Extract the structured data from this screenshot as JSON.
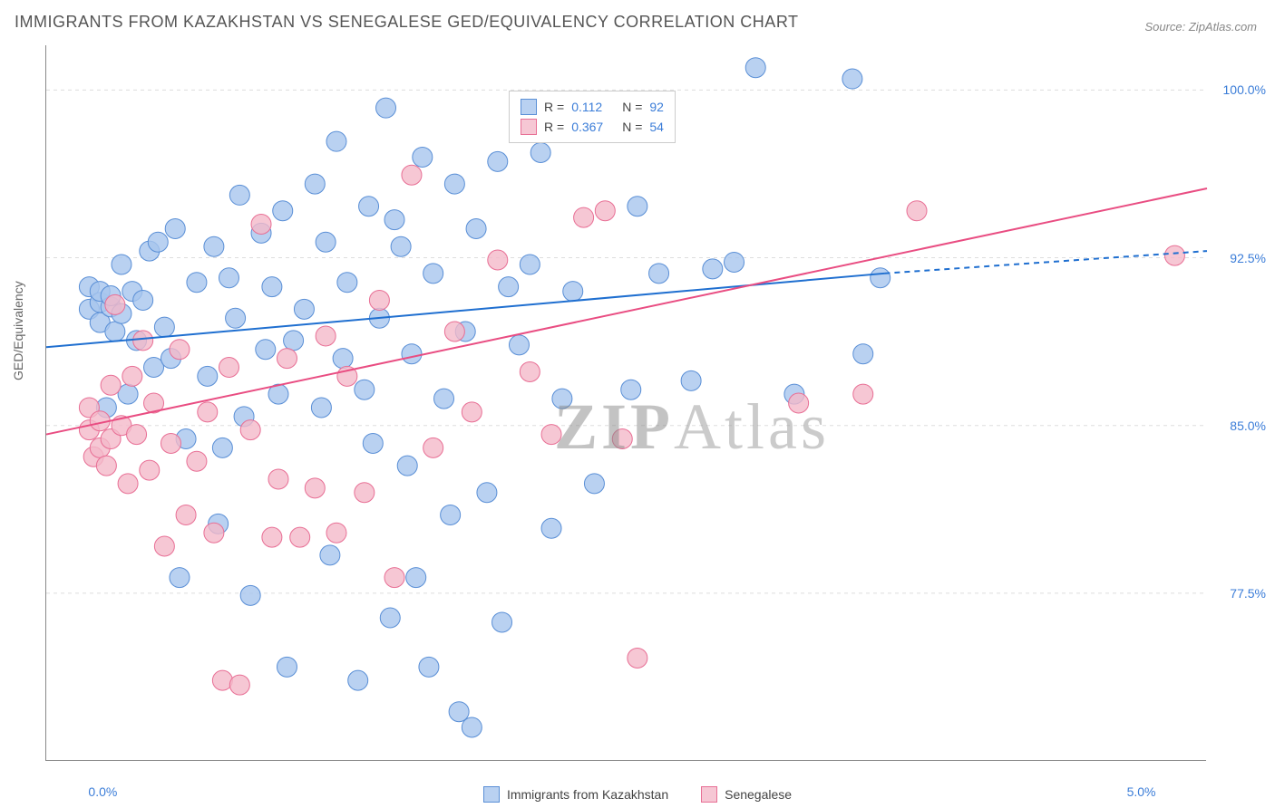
{
  "title": "IMMIGRANTS FROM KAZAKHSTAN VS SENEGALESE GED/EQUIVALENCY CORRELATION CHART",
  "source": "Source: ZipAtlas.com",
  "ylabel": "GED/Equivalency",
  "watermark_a": "ZIP",
  "watermark_b": "Atlas",
  "chart": {
    "type": "scatter",
    "background_color": "#ffffff",
    "grid_color": "#dddddd",
    "axis_color": "#888888",
    "tick_label_color": "#3b7dd8",
    "title_fontsize": 18,
    "label_fontsize": 14,
    "xlim": [
      -0.2,
      5.2
    ],
    "ylim": [
      70,
      102
    ],
    "x_ticks": [
      {
        "v": 0.0,
        "label": "0.0%"
      },
      {
        "v": 5.0,
        "label": "5.0%"
      }
    ],
    "y_ticks": [
      {
        "v": 77.5,
        "label": "77.5%"
      },
      {
        "v": 85.0,
        "label": "85.0%"
      },
      {
        "v": 92.5,
        "label": "92.5%"
      },
      {
        "v": 100.0,
        "label": "100.0%"
      }
    ],
    "legend_box": {
      "rows": [
        {
          "series": 0,
          "r_label": "R =",
          "r_value": "0.112",
          "n_label": "N =",
          "n_value": "92"
        },
        {
          "series": 1,
          "r_label": "R =",
          "r_value": "0.367",
          "n_label": "N =",
          "n_value": "54"
        }
      ]
    },
    "bottom_legend": [
      {
        "series": 0,
        "label": "Immigrants from Kazakhstan"
      },
      {
        "series": 1,
        "label": "Senegalese"
      }
    ],
    "series": [
      {
        "name": "Immigrants from Kazakhstan",
        "fill_color": "#a7c5edcc",
        "stroke_color": "#5a8fd6",
        "marker_radius": 11,
        "trend": {
          "x1": -0.2,
          "y1": 88.5,
          "x2": 3.7,
          "y2": 91.8,
          "x2_dash": 5.2,
          "y2_dash": 92.8,
          "color": "#1f6fd0",
          "width": 2
        },
        "points": [
          [
            0.0,
            90.2
          ],
          [
            0.0,
            91.2
          ],
          [
            0.05,
            90.5
          ],
          [
            0.05,
            89.6
          ],
          [
            0.05,
            91.0
          ],
          [
            0.08,
            85.8
          ],
          [
            0.1,
            90.3
          ],
          [
            0.1,
            90.8
          ],
          [
            0.12,
            89.2
          ],
          [
            0.15,
            92.2
          ],
          [
            0.15,
            90.0
          ],
          [
            0.18,
            86.4
          ],
          [
            0.2,
            91.0
          ],
          [
            0.22,
            88.8
          ],
          [
            0.25,
            90.6
          ],
          [
            0.28,
            92.8
          ],
          [
            0.3,
            87.6
          ],
          [
            0.32,
            93.2
          ],
          [
            0.35,
            89.4
          ],
          [
            0.38,
            88.0
          ],
          [
            0.4,
            93.8
          ],
          [
            0.42,
            78.2
          ],
          [
            0.45,
            84.4
          ],
          [
            0.5,
            91.4
          ],
          [
            0.55,
            87.2
          ],
          [
            0.58,
            93.0
          ],
          [
            0.6,
            80.6
          ],
          [
            0.62,
            84.0
          ],
          [
            0.65,
            91.6
          ],
          [
            0.68,
            89.8
          ],
          [
            0.7,
            95.3
          ],
          [
            0.72,
            85.4
          ],
          [
            0.75,
            77.4
          ],
          [
            0.8,
            93.6
          ],
          [
            0.82,
            88.4
          ],
          [
            0.85,
            91.2
          ],
          [
            0.88,
            86.4
          ],
          [
            0.9,
            94.6
          ],
          [
            0.92,
            74.2
          ],
          [
            0.95,
            88.8
          ],
          [
            1.0,
            90.2
          ],
          [
            1.05,
            95.8
          ],
          [
            1.08,
            85.8
          ],
          [
            1.1,
            93.2
          ],
          [
            1.12,
            79.2
          ],
          [
            1.15,
            97.7
          ],
          [
            1.18,
            88.0
          ],
          [
            1.2,
            91.4
          ],
          [
            1.25,
            73.6
          ],
          [
            1.28,
            86.6
          ],
          [
            1.3,
            94.8
          ],
          [
            1.32,
            84.2
          ],
          [
            1.35,
            89.8
          ],
          [
            1.38,
            99.2
          ],
          [
            1.4,
            76.4
          ],
          [
            1.42,
            94.2
          ],
          [
            1.45,
            93.0
          ],
          [
            1.48,
            83.2
          ],
          [
            1.5,
            88.2
          ],
          [
            1.52,
            78.2
          ],
          [
            1.55,
            97.0
          ],
          [
            1.58,
            74.2
          ],
          [
            1.6,
            91.8
          ],
          [
            1.65,
            86.2
          ],
          [
            1.68,
            81.0
          ],
          [
            1.7,
            95.8
          ],
          [
            1.72,
            72.2
          ],
          [
            1.75,
            89.2
          ],
          [
            1.78,
            71.5
          ],
          [
            1.8,
            93.8
          ],
          [
            1.85,
            82.0
          ],
          [
            1.9,
            96.8
          ],
          [
            1.92,
            76.2
          ],
          [
            1.95,
            91.2
          ],
          [
            2.0,
            88.6
          ],
          [
            2.05,
            92.2
          ],
          [
            2.1,
            97.2
          ],
          [
            2.15,
            80.4
          ],
          [
            2.2,
            86.2
          ],
          [
            2.25,
            91.0
          ],
          [
            2.35,
            82.4
          ],
          [
            2.52,
            86.6
          ],
          [
            2.55,
            94.8
          ],
          [
            2.65,
            91.8
          ],
          [
            2.8,
            87.0
          ],
          [
            2.9,
            92.0
          ],
          [
            3.0,
            92.3
          ],
          [
            3.1,
            101.0
          ],
          [
            3.28,
            86.4
          ],
          [
            3.55,
            100.5
          ],
          [
            3.6,
            88.2
          ],
          [
            3.68,
            91.6
          ]
        ]
      },
      {
        "name": "Senegalese",
        "fill_color": "#f4b9c9cc",
        "stroke_color": "#e86f95",
        "marker_radius": 11,
        "trend": {
          "x1": -0.2,
          "y1": 84.6,
          "x2": 5.2,
          "y2": 95.6,
          "color": "#e94d82",
          "width": 2
        },
        "points": [
          [
            0.0,
            84.8
          ],
          [
            0.0,
            85.8
          ],
          [
            0.02,
            83.6
          ],
          [
            0.05,
            85.2
          ],
          [
            0.05,
            84.0
          ],
          [
            0.08,
            83.2
          ],
          [
            0.1,
            86.8
          ],
          [
            0.1,
            84.4
          ],
          [
            0.12,
            90.4
          ],
          [
            0.15,
            85.0
          ],
          [
            0.18,
            82.4
          ],
          [
            0.2,
            87.2
          ],
          [
            0.22,
            84.6
          ],
          [
            0.25,
            88.8
          ],
          [
            0.28,
            83.0
          ],
          [
            0.3,
            86.0
          ],
          [
            0.35,
            79.6
          ],
          [
            0.38,
            84.2
          ],
          [
            0.42,
            88.4
          ],
          [
            0.45,
            81.0
          ],
          [
            0.5,
            83.4
          ],
          [
            0.55,
            85.6
          ],
          [
            0.58,
            80.2
          ],
          [
            0.62,
            73.6
          ],
          [
            0.65,
            87.6
          ],
          [
            0.7,
            73.4
          ],
          [
            0.75,
            84.8
          ],
          [
            0.8,
            94.0
          ],
          [
            0.85,
            80.0
          ],
          [
            0.88,
            82.6
          ],
          [
            0.92,
            88.0
          ],
          [
            0.98,
            80.0
          ],
          [
            1.05,
            82.2
          ],
          [
            1.1,
            89.0
          ],
          [
            1.15,
            80.2
          ],
          [
            1.2,
            87.2
          ],
          [
            1.28,
            82.0
          ],
          [
            1.35,
            90.6
          ],
          [
            1.42,
            78.2
          ],
          [
            1.5,
            96.2
          ],
          [
            1.6,
            84.0
          ],
          [
            1.7,
            89.2
          ],
          [
            1.78,
            85.6
          ],
          [
            1.9,
            92.4
          ],
          [
            2.05,
            87.4
          ],
          [
            2.15,
            84.6
          ],
          [
            2.3,
            94.3
          ],
          [
            2.4,
            94.6
          ],
          [
            2.48,
            84.4
          ],
          [
            2.55,
            74.6
          ],
          [
            3.3,
            86.0
          ],
          [
            3.6,
            86.4
          ],
          [
            3.85,
            94.6
          ],
          [
            5.05,
            92.6
          ]
        ]
      }
    ]
  }
}
